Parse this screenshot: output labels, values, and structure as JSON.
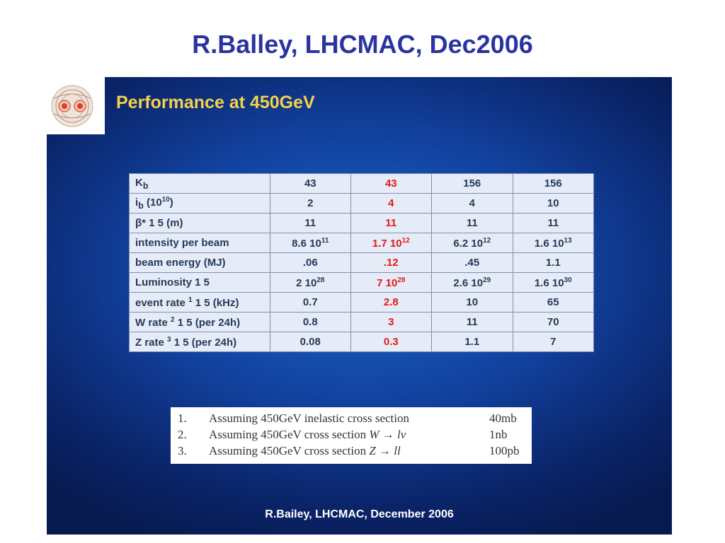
{
  "page": {
    "title": "R.Balley, LHCMAC, Dec2006"
  },
  "slide": {
    "header": "Performance at 450GeV",
    "footer": "R.Bailey, LHCMAC, December 2006"
  },
  "table": {
    "rows": [
      {
        "label": "K",
        "sub": "b",
        "values": [
          "43",
          "43",
          "156",
          "156"
        ]
      },
      {
        "label": "i",
        "sub": "b",
        "tail": " (10",
        "sup": "10",
        "tail2": ")",
        "values": [
          "2",
          "4",
          "4",
          "10"
        ]
      },
      {
        "label": "β* 1 5 (m)",
        "values": [
          "11",
          "11",
          "11",
          "11"
        ]
      },
      {
        "label": "intensity per beam",
        "values": [
          {
            "base": "8.6 10",
            "exp": "11"
          },
          {
            "base": "1.7 10",
            "exp": "12"
          },
          {
            "base": "6.2 10",
            "exp": "12"
          },
          {
            "base": "1.6 10",
            "exp": "13"
          }
        ]
      },
      {
        "label": "beam energy (MJ)",
        "values": [
          ".06",
          ".12",
          ".45",
          "1.1"
        ]
      },
      {
        "label": "Luminosity 1 5",
        "values": [
          {
            "base": "2 10",
            "exp": "28"
          },
          {
            "base": "7 10",
            "exp": "28"
          },
          {
            "base": "2.6 10",
            "exp": "29"
          },
          {
            "base": "1.6 10",
            "exp": "30"
          }
        ]
      },
      {
        "label": "event rate ",
        "sup": "1",
        "tail": " 1 5 (kHz)",
        "values": [
          "0.7",
          "2.8",
          "10",
          "65"
        ]
      },
      {
        "label": "W rate ",
        "sup": "2",
        "tail": " 1 5 (per 24h)",
        "values": [
          "0.8",
          "3",
          "11",
          "70"
        ]
      },
      {
        "label": "Z rate ",
        "sup": "3",
        "tail": " 1 5 (per 24h)",
        "values": [
          "0.08",
          "0.3",
          "1.1",
          "7"
        ]
      }
    ]
  },
  "notes": [
    {
      "num": "1.",
      "text": "Assuming 450GeV inelastic cross section",
      "value": "40mb"
    },
    {
      "num": "2.",
      "text": "Assuming 450GeV cross section ",
      "formula": "W → lν",
      "value": "1nb"
    },
    {
      "num": "3.",
      "text": "Assuming 450GeV cross section ",
      "formula": "Z → ll",
      "value": "100pb"
    }
  ],
  "colors": {
    "title": "#2a34a0",
    "header": "#f4d24a",
    "highlight": "#e21a1a",
    "table_text": "#253a5a"
  },
  "icons": {
    "logo": "lhc-dipole-cross-section-logo"
  }
}
